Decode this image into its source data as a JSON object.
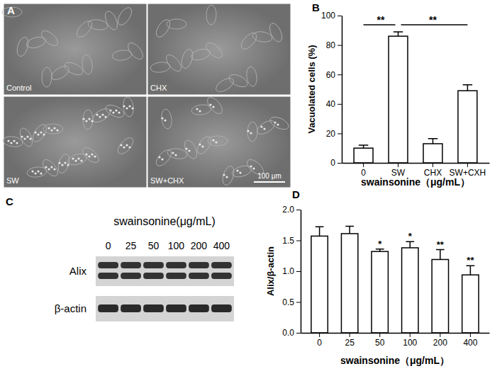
{
  "panels": {
    "a": "A",
    "b": "B",
    "c": "C",
    "d": "D"
  },
  "micrographs": {
    "labels": [
      "Control",
      "CHX",
      "SW",
      "SW+CHX"
    ],
    "scale_bar": "100 μm"
  },
  "blot": {
    "title": "swainsonine(μg/mL)",
    "lanes": [
      "0",
      "25",
      "50",
      "100",
      "200",
      "400"
    ],
    "rows": [
      "Alix",
      "β-actin"
    ]
  },
  "chart_data": [
    {
      "type": "bar",
      "x_label": "swainsonine（μg/mL）",
      "y_label": "Vacuolated cells (%)",
      "categories": [
        "0",
        "SW",
        "CHX",
        "SW+CXH"
      ],
      "values": [
        10,
        86,
        13,
        49
      ],
      "errors": [
        2,
        3,
        3.5,
        4
      ],
      "color": "#ffffff",
      "ylim": [
        0,
        100
      ],
      "yticks": [
        0,
        20,
        40,
        60,
        80,
        100
      ],
      "annotations": [
        {
          "text": "**",
          "from": "0",
          "to": "SW"
        },
        {
          "text": "**",
          "from": "SW",
          "to": "SW+CXH"
        }
      ]
    },
    {
      "type": "bar",
      "x_label": "swainsonine（μg/mL）",
      "y_label": "Alix/β-actin",
      "categories": [
        "0",
        "25",
        "50",
        "100",
        "200",
        "400"
      ],
      "values": [
        1.57,
        1.61,
        1.32,
        1.38,
        1.19,
        0.94
      ],
      "errors": [
        0.15,
        0.12,
        0.04,
        0.1,
        0.16,
        0.15
      ],
      "significance": [
        null,
        null,
        "*",
        "*",
        "**",
        "**"
      ],
      "color": "#ffffff",
      "ylim": [
        0,
        2
      ],
      "yticks": [
        {
          "value": 0,
          "label": "0.0"
        },
        {
          "value": 0.5,
          "label": "0.5"
        },
        {
          "value": 1,
          "label": "1.0"
        },
        {
          "value": 1.5,
          "label": "1.5"
        },
        {
          "value": 2,
          "label": "2.0"
        }
      ]
    }
  ]
}
